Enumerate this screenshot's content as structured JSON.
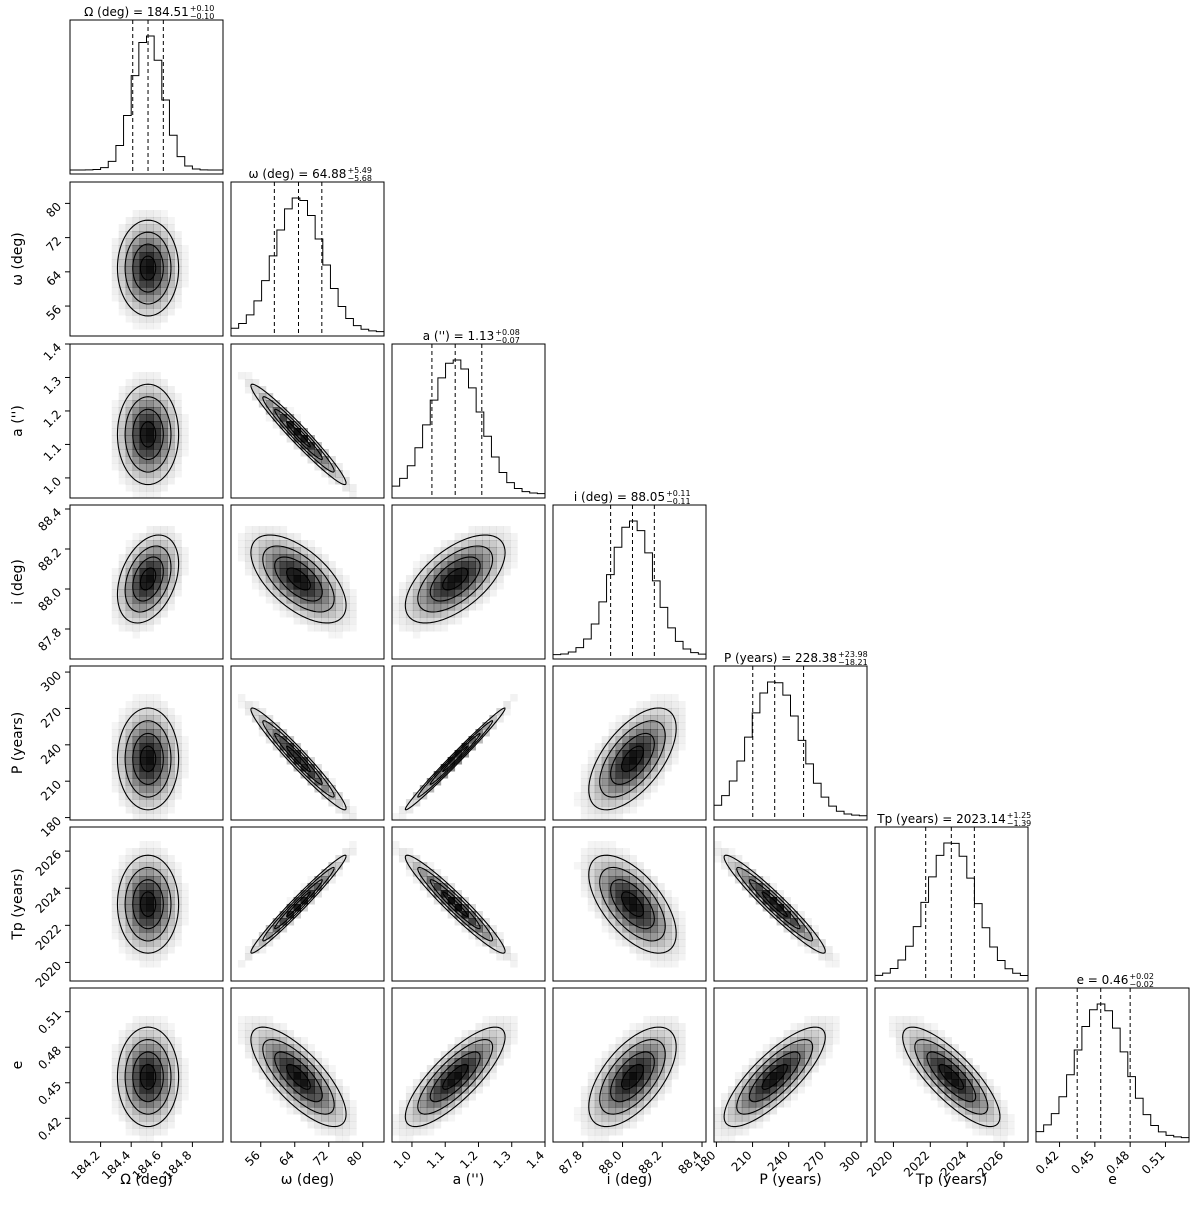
{
  "chart_data": {
    "type": "corner",
    "parameters": [
      {
        "key": "Omega",
        "label": "Ω (deg)",
        "title": "Ω (deg) = 184.51",
        "plus": "+0.10",
        "minus": "−0.10",
        "median": 184.51,
        "q16": 184.41,
        "q84": 184.61,
        "sigma": 0.1,
        "range": [
          184.0,
          185.0
        ],
        "ticks": [
          184.2,
          184.4,
          184.6,
          184.8
        ],
        "tick_labels": [
          "184.2",
          "184.4",
          "184.6",
          "184.8"
        ]
      },
      {
        "key": "omega",
        "label": "ω (deg)",
        "title": "ω (deg) = 64.88",
        "plus": "+5.49",
        "minus": "−5.68",
        "median": 64.88,
        "q16": 59.2,
        "q84": 70.37,
        "sigma": 5.6,
        "range": [
          49.0,
          85.0
        ],
        "ticks": [
          56,
          64,
          72,
          80
        ],
        "tick_labels": [
          "56",
          "64",
          "72",
          "80"
        ]
      },
      {
        "key": "a",
        "label": "a ('')",
        "title": "a ('') = 1.13",
        "plus": "+0.08",
        "minus": "−0.07",
        "median": 1.13,
        "q16": 1.06,
        "q84": 1.21,
        "sigma": 0.075,
        "range": [
          0.94,
          1.4
        ],
        "ticks": [
          1.0,
          1.1,
          1.2,
          1.3,
          1.4
        ],
        "tick_labels": [
          "1.0",
          "1.1",
          "1.2",
          "1.3",
          "1.4"
        ]
      },
      {
        "key": "i",
        "label": "i (deg)",
        "title": "i (deg) = 88.05",
        "plus": "+0.11",
        "minus": "−0.11",
        "median": 88.05,
        "q16": 87.94,
        "q84": 88.16,
        "sigma": 0.11,
        "range": [
          87.65,
          88.42
        ],
        "ticks": [
          87.8,
          88.0,
          88.2,
          88.4
        ],
        "tick_labels": [
          "87.8",
          "88.0",
          "88.2",
          "88.4"
        ]
      },
      {
        "key": "P",
        "label": "P (years)",
        "title": "P (years) = 228.38",
        "plus": "+23.98",
        "minus": "−18.21",
        "median": 228.38,
        "q16": 210.17,
        "q84": 252.36,
        "sigma": 21.0,
        "range": [
          178.0,
          305.0
        ],
        "ticks": [
          180,
          210,
          240,
          270,
          300
        ],
        "tick_labels": [
          "180",
          "210",
          "240",
          "270",
          "300"
        ]
      },
      {
        "key": "Tp",
        "label": "Tp (years)",
        "title": "Tp (years) = 2023.14",
        "plus": "+1.25",
        "minus": "−1.39",
        "median": 2023.14,
        "q16": 2021.75,
        "q84": 2024.39,
        "sigma": 1.32,
        "range": [
          2019.0,
          2027.3
        ],
        "ticks": [
          2020,
          2022,
          2024,
          2026
        ],
        "tick_labels": [
          "2020",
          "2022",
          "2024",
          "2026"
        ]
      },
      {
        "key": "e",
        "label": "e",
        "title": "e = 0.46",
        "plus": "+0.02",
        "minus": "−0.02",
        "median": 0.455,
        "q16": 0.435,
        "q84": 0.48,
        "sigma": 0.021,
        "range": [
          0.4,
          0.53
        ],
        "ticks": [
          0.42,
          0.45,
          0.48,
          0.51
        ],
        "tick_labels": [
          "0.42",
          "0.45",
          "0.48",
          "0.51"
        ]
      }
    ],
    "correlations": [
      [
        1.0,
        0.0,
        0.0,
        0.35,
        0.0,
        0.0,
        0.0
      ],
      [
        0.0,
        1.0,
        -0.97,
        -0.6,
        -0.97,
        0.98,
        -0.75
      ],
      [
        0.0,
        -0.97,
        1.0,
        0.6,
        0.99,
        -0.96,
        0.8
      ],
      [
        0.35,
        -0.6,
        0.6,
        1.0,
        0.6,
        -0.6,
        0.6
      ],
      [
        0.0,
        -0.97,
        0.99,
        0.6,
        1.0,
        -0.96,
        0.8
      ],
      [
        0.0,
        0.98,
        -0.96,
        -0.6,
        -0.96,
        1.0,
        -0.8
      ],
      [
        0.0,
        -0.75,
        0.8,
        0.6,
        0.8,
        -0.8,
        1.0
      ]
    ],
    "contour_levels_sigma": [
      0.5,
      1.0,
      1.5,
      2.0
    ],
    "style": {
      "line_color": "#000000",
      "density_color": "#000000"
    }
  }
}
